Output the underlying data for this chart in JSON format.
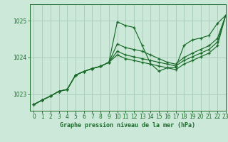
{
  "background_color": "#cce8d8",
  "grid_color": "#aacfba",
  "line_color": "#1a6b2a",
  "xlabel": "Graphe pression niveau de la mer (hPa)",
  "xlim": [
    -0.5,
    23
  ],
  "ylim": [
    1022.55,
    1025.45
  ],
  "yticks": [
    1023,
    1024,
    1025
  ],
  "xticks": [
    0,
    1,
    2,
    3,
    4,
    5,
    6,
    7,
    8,
    9,
    10,
    11,
    12,
    13,
    14,
    15,
    16,
    17,
    18,
    19,
    20,
    21,
    22,
    23
  ],
  "series": [
    [
      1022.72,
      1022.84,
      1022.95,
      1023.08,
      1023.13,
      1023.52,
      1023.62,
      1023.7,
      1023.76,
      1023.87,
      1024.97,
      1024.87,
      1024.82,
      1024.32,
      1023.83,
      1023.63,
      1023.72,
      1023.73,
      1024.33,
      1024.48,
      1024.53,
      1024.6,
      1024.93,
      1025.15
    ],
    [
      1022.72,
      1022.84,
      1022.95,
      1023.08,
      1023.13,
      1023.52,
      1023.62,
      1023.7,
      1023.76,
      1023.87,
      1024.37,
      1024.27,
      1024.22,
      1024.17,
      1024.07,
      1023.97,
      1023.87,
      1023.82,
      1024.0,
      1024.12,
      1024.22,
      1024.32,
      1024.52,
      1025.15
    ],
    [
      1022.72,
      1022.84,
      1022.95,
      1023.08,
      1023.13,
      1023.52,
      1023.62,
      1023.7,
      1023.76,
      1023.87,
      1024.17,
      1024.07,
      1024.02,
      1023.97,
      1023.92,
      1023.87,
      1023.82,
      1023.77,
      1023.92,
      1024.02,
      1024.12,
      1024.22,
      1024.42,
      1025.15
    ],
    [
      1022.72,
      1022.84,
      1022.95,
      1023.08,
      1023.13,
      1023.52,
      1023.62,
      1023.7,
      1023.76,
      1023.87,
      1024.07,
      1023.97,
      1023.92,
      1023.87,
      1023.82,
      1023.77,
      1023.72,
      1023.67,
      1023.82,
      1023.92,
      1024.02,
      1024.12,
      1024.32,
      1025.15
    ]
  ]
}
